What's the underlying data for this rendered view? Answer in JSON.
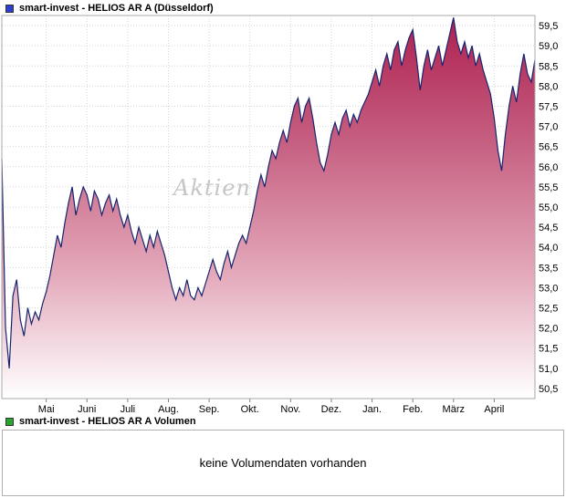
{
  "legend": {
    "price": {
      "label": "smart-invest - HELIOS AR A (Düsseldorf)",
      "color": "#2b3fd0",
      "border": "#333333"
    },
    "volume": {
      "label": "smart-invest - HELIOS AR A Volumen",
      "color": "#27a52f",
      "border": "#333333"
    }
  },
  "volume_panel": {
    "message": "keine Volumendaten vorhanden"
  },
  "chart_data": {
    "type": "area",
    "title": "smart-invest - HELIOS AR A (Düsseldorf)",
    "watermark": "Aktien",
    "ylim": [
      50.25,
      59.75
    ],
    "ylabel": "",
    "xlabel": "",
    "grid": true,
    "legend_position": "top-left",
    "y_ticks": [
      59.5,
      59.0,
      58.5,
      58.0,
      57.5,
      57.0,
      56.5,
      56.0,
      55.5,
      55.0,
      54.5,
      54.0,
      53.5,
      53.0,
      52.5,
      52.0,
      51.5,
      51.0,
      50.5
    ],
    "y_tick_labels": [
      "59,5",
      "59,0",
      "58,5",
      "58,0",
      "57,5",
      "57,0",
      "56,5",
      "56,0",
      "55,5",
      "55,0",
      "54,5",
      "54,0",
      "53,5",
      "53,0",
      "52,5",
      "52,0",
      "51,5",
      "51,0",
      "50,5"
    ],
    "x_ticks": [
      {
        "index": 12,
        "label": "Mai"
      },
      {
        "index": 23,
        "label": "Juni"
      },
      {
        "index": 34,
        "label": "Juli"
      },
      {
        "index": 45,
        "label": "Aug."
      },
      {
        "index": 56,
        "label": "Sep."
      },
      {
        "index": 67,
        "label": "Okt."
      },
      {
        "index": 78,
        "label": "Nov."
      },
      {
        "index": 89,
        "label": "Dez."
      },
      {
        "index": 100,
        "label": "Jan."
      },
      {
        "index": 111,
        "label": "Feb."
      },
      {
        "index": 122,
        "label": "März"
      },
      {
        "index": 133,
        "label": "April"
      }
    ],
    "values": [
      56.2,
      52.0,
      51.0,
      52.8,
      53.2,
      52.2,
      51.8,
      52.5,
      52.1,
      52.4,
      52.2,
      52.6,
      52.9,
      53.3,
      53.8,
      54.3,
      54.0,
      54.6,
      55.1,
      55.5,
      54.8,
      55.2,
      55.5,
      55.3,
      54.9,
      55.4,
      55.2,
      54.8,
      55.1,
      55.3,
      54.9,
      55.2,
      54.8,
      54.5,
      54.8,
      54.4,
      54.1,
      54.5,
      54.2,
      53.9,
      54.3,
      54.0,
      54.4,
      54.1,
      53.8,
      53.4,
      53.0,
      52.7,
      53.0,
      52.8,
      53.2,
      52.8,
      52.7,
      53.0,
      52.8,
      53.1,
      53.4,
      53.7,
      53.4,
      53.2,
      53.6,
      53.9,
      53.5,
      53.8,
      54.1,
      54.3,
      54.1,
      54.5,
      54.9,
      55.4,
      55.8,
      55.5,
      56.0,
      56.4,
      56.2,
      56.6,
      56.9,
      56.6,
      57.1,
      57.5,
      57.7,
      57.1,
      57.5,
      57.7,
      57.2,
      56.6,
      56.1,
      55.9,
      56.3,
      56.8,
      57.1,
      56.8,
      57.2,
      57.4,
      57.0,
      57.3,
      57.1,
      57.4,
      57.6,
      57.8,
      58.1,
      58.4,
      58.0,
      58.5,
      58.8,
      58.4,
      58.9,
      59.1,
      58.5,
      58.9,
      59.2,
      59.4,
      58.7,
      57.9,
      58.5,
      58.9,
      58.4,
      58.7,
      59.0,
      58.5,
      58.9,
      59.3,
      59.7,
      59.1,
      58.8,
      59.1,
      58.7,
      59.0,
      58.5,
      58.8,
      58.4,
      58.1,
      57.8,
      57.2,
      56.4,
      55.9,
      56.8,
      57.5,
      58.0,
      57.6,
      58.3,
      58.8,
      58.3,
      58.1,
      58.65
    ],
    "line_color": "#17246e",
    "area_gradient": [
      "#ad1f4e",
      "#c65f81",
      "#e3a8ba",
      "#ffffff"
    ],
    "grid_color": "#d6d6d6",
    "tick_color": "#808080",
    "border_color": "#a8a8a8"
  }
}
